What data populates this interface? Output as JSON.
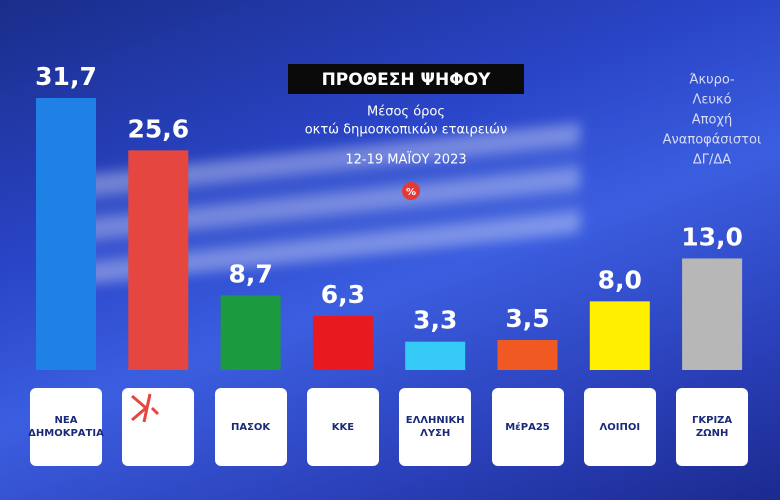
{
  "chart_data": {
    "type": "bar",
    "title": "ΠΡΟΘΕΣΗ ΨΗΦΟΥ",
    "subtitle": [
      "Μέσος όρος",
      "οκτώ δημοσκοπικών εταιρειών"
    ],
    "date": "12-19 ΜΑΪΟΥ 2023",
    "unit": "%",
    "annotation": [
      "Άκυρο-",
      "Λευκό",
      "Αποχή",
      "Αναποφάσιστοι",
      "ΔΓ/ΔΑ"
    ],
    "categories": [
      "ΝΕΑ ΔΗΜΟΚΡΑΤΙΑ",
      null,
      "ΠΑΣΟΚ",
      "ΚΚΕ",
      "ΕΛΛΗΝΙΚΗ ΛΥΣΗ",
      "ΜέΡΑ25",
      "ΛΟΙΠΟΙ",
      "ΓΚΡΙΖΑ ΖΩΝΗ"
    ],
    "values": [
      31.7,
      25.6,
      8.7,
      6.3,
      3.3,
      3.5,
      8.0,
      13.0
    ],
    "value_labels": [
      "31,7",
      "25,6",
      "8,7",
      "6,3",
      "3,3",
      "3,5",
      "8,0",
      "13,0"
    ],
    "colors": [
      "#1f80e6",
      "#e5463f",
      "#1b9a40",
      "#e8191f",
      "#35cbf6",
      "#f05a22",
      "#fff000",
      "#b7b7b7"
    ]
  }
}
